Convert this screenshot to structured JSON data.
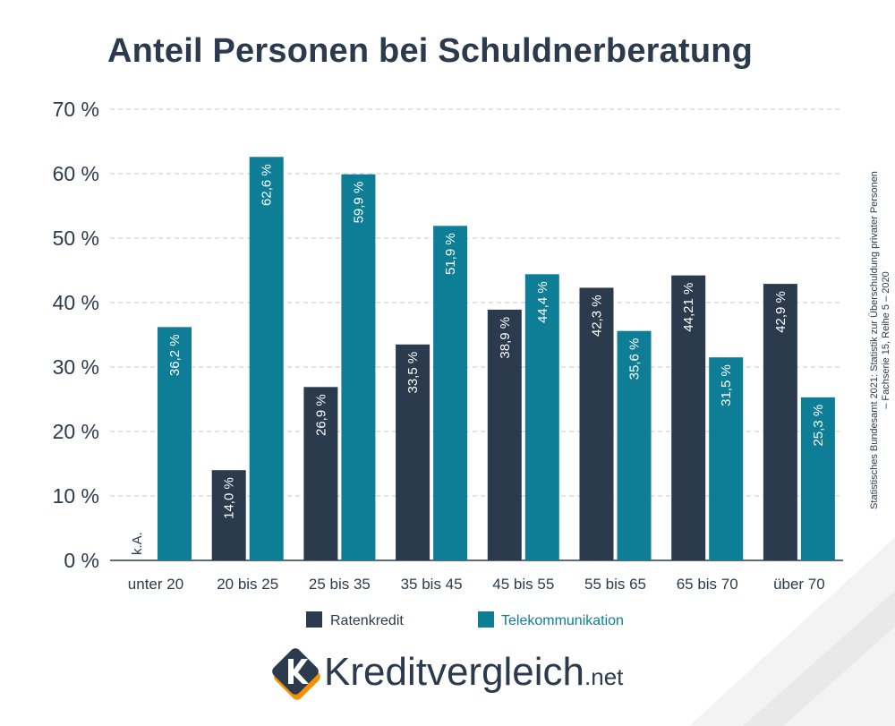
{
  "chart_data": {
    "type": "bar",
    "title": "Anteil Personen bei Schuldnerberatung",
    "categories": [
      "unter 20",
      "20 bis 25",
      "25 bis 35",
      "35 bis 45",
      "45 bis 55",
      "55 bis 65",
      "65 bis 70",
      "über 70"
    ],
    "series": [
      {
        "name": "Ratenkredit",
        "color": "#2b3a4d",
        "values": [
          null,
          14.0,
          26.9,
          33.5,
          38.9,
          42.3,
          44.21,
          42.9
        ],
        "labels": [
          "k.A.",
          "14,0 %",
          "26,9 %",
          "33,5 %",
          "38,9 %",
          "42,3 %",
          "44,21 %",
          "42,9 %"
        ]
      },
      {
        "name": "Telekommunikation",
        "color": "#0e7e97",
        "values": [
          36.2,
          62.6,
          59.9,
          51.9,
          44.4,
          35.6,
          31.5,
          25.3
        ],
        "labels": [
          "36,2 %",
          "62,6 %",
          "59,9 %",
          "51,9 %",
          "44,4 %",
          "35,6 %",
          "31,5 %",
          "25,3 %"
        ]
      }
    ],
    "ylim": [
      0,
      70
    ],
    "yticks": [
      0,
      10,
      20,
      30,
      40,
      50,
      60,
      70
    ],
    "ytick_labels": [
      "0 %",
      "10 %",
      "20 %",
      "30 %",
      "40 %",
      "50 %",
      "60 %",
      "70 %"
    ],
    "xlabel": "",
    "ylabel": "",
    "grid": true,
    "legend_position": "bottom-center"
  },
  "source": {
    "line1": "Statistisches Bundesamt 2021: Statistik zur Überschuldung privater Personen",
    "line2": "– Fachserie 15, Reihe 5 – 2020"
  },
  "logo": {
    "name": "Kreditvergleich",
    "suffix": ".net",
    "colors": {
      "dark": "#2b3a4d",
      "orange": "#f39200"
    }
  }
}
